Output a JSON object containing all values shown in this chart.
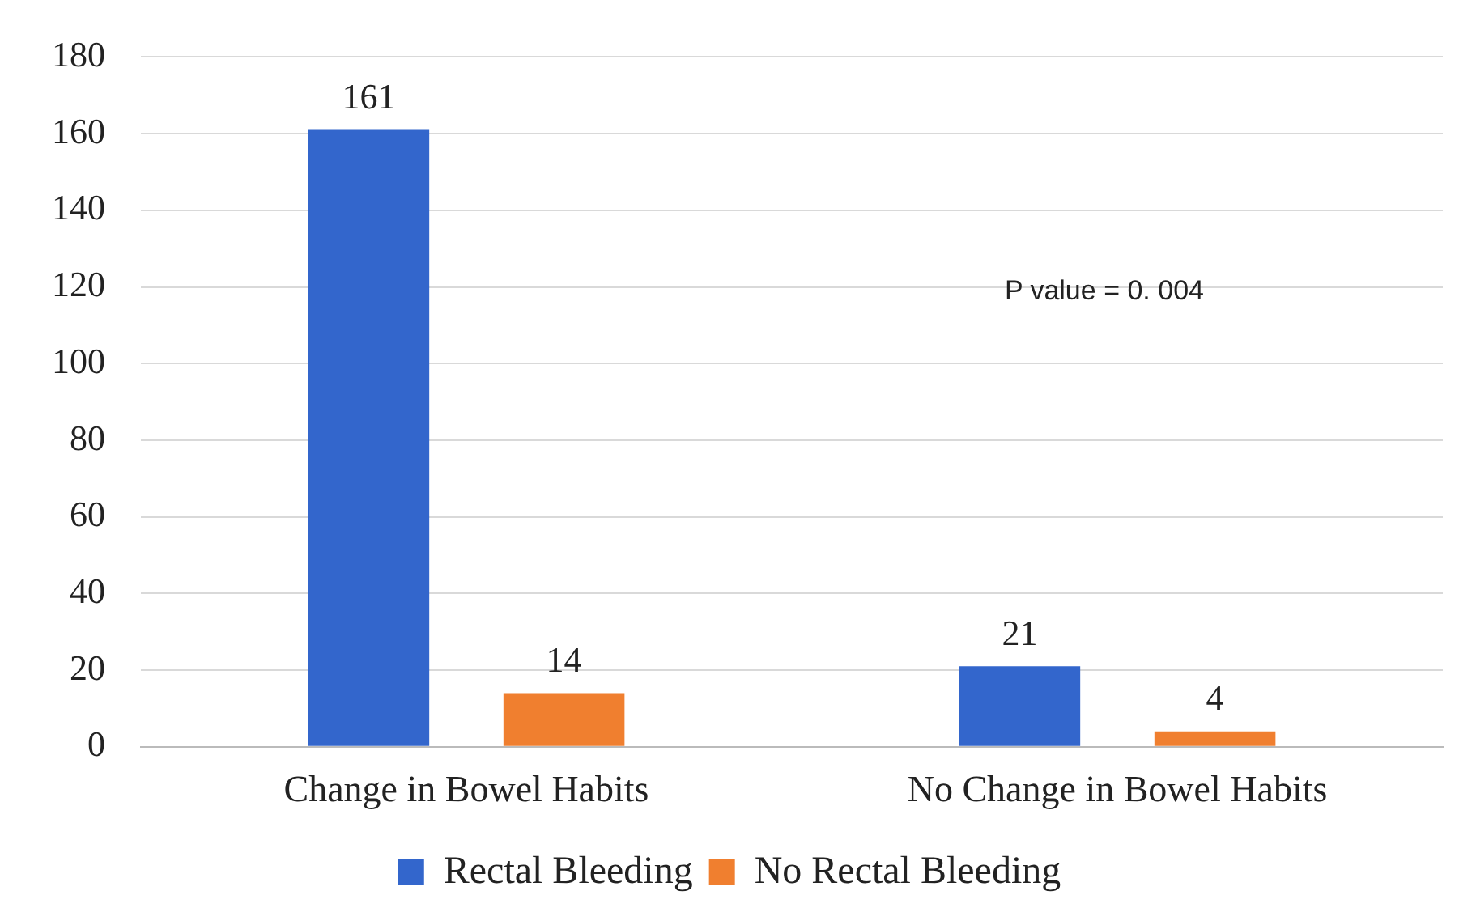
{
  "chart_data": {
    "type": "bar",
    "categories": [
      "Change in Bowel Habits",
      "No Change in Bowel Habits"
    ],
    "series": [
      {
        "name": "Rectal Bleeding",
        "color": "#3366cc",
        "values": [
          161,
          21
        ]
      },
      {
        "name": "No Rectal Bleeding",
        "color": "#f07f2f",
        "values": [
          14,
          4
        ]
      }
    ],
    "ylim": [
      0,
      180
    ],
    "yticks": [
      0,
      20,
      40,
      60,
      80,
      100,
      120,
      140,
      160,
      180
    ],
    "grid": "y",
    "legend": "bottom",
    "data_labels": true,
    "annotations": [
      "P value = 0. 004"
    ]
  }
}
